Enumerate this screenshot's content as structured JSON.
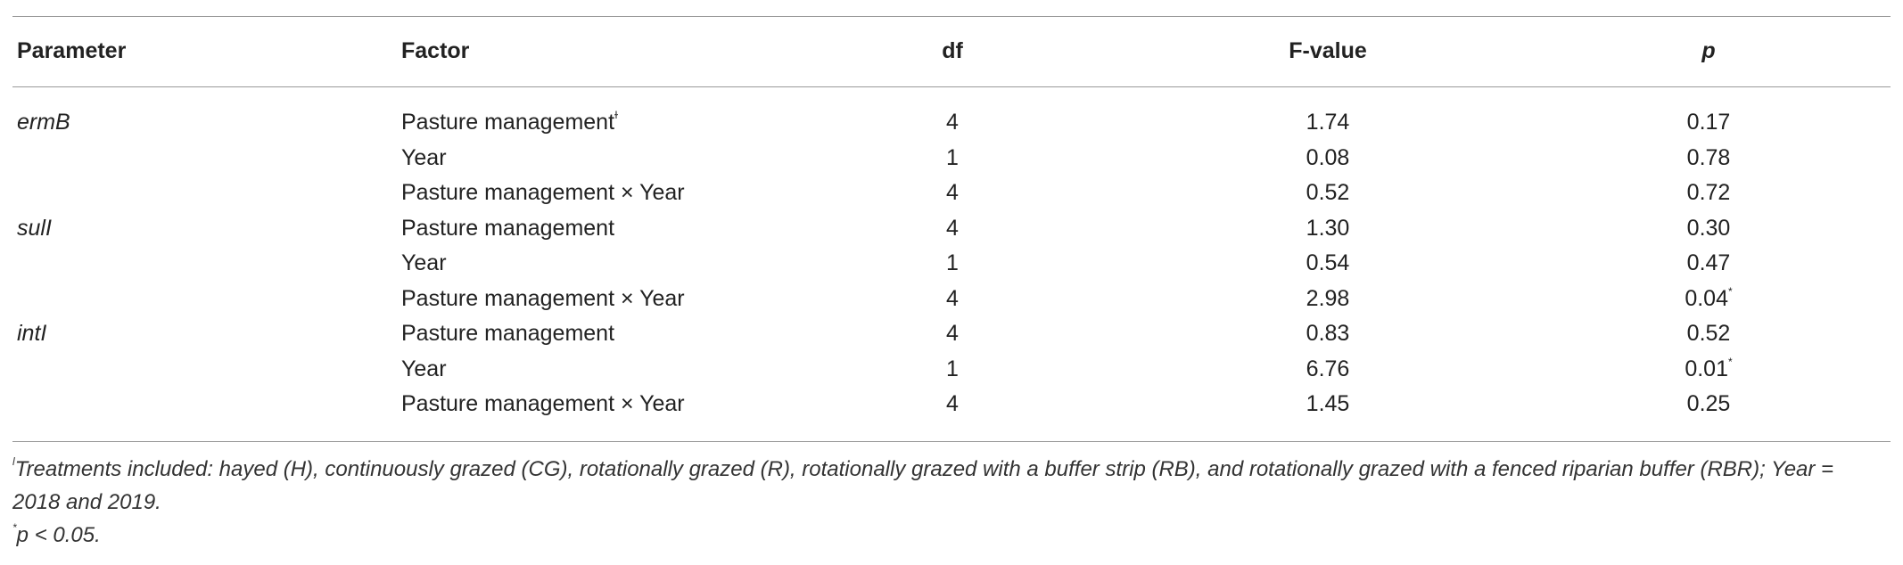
{
  "table": {
    "header": [
      "Parameter",
      "Factor",
      "df",
      "F-value",
      "p"
    ],
    "rows": [
      {
        "parameter": "ermB",
        "factor": "Pasture management",
        "factor_note": "ɫ",
        "df": "4",
        "f_value": "1.74",
        "p": "0.17"
      },
      {
        "factor": "Year",
        "df": "1",
        "f_value": "0.08",
        "p": "0.78"
      },
      {
        "factor": "Pasture management × Year",
        "df": "4",
        "f_value": "0.52",
        "p": "0.72"
      },
      {
        "parameter": "sulI",
        "factor": "Pasture management",
        "df": "4",
        "f_value": "1.30",
        "p": "0.30"
      },
      {
        "factor": "Year",
        "df": "1",
        "f_value": "0.54",
        "p": "0.47"
      },
      {
        "factor": "Pasture management × Year",
        "df": "4",
        "f_value": "2.98",
        "p": "0.04",
        "p_note": "*"
      },
      {
        "parameter": "intI",
        "factor": "Pasture management",
        "df": "4",
        "f_value": "0.83",
        "p": "0.52"
      },
      {
        "factor": "Year",
        "df": "1",
        "f_value": "6.76",
        "p": "0.01",
        "p_note": "*"
      },
      {
        "factor": "Pasture management × Year",
        "df": "4",
        "f_value": "1.45",
        "p": "0.25"
      }
    ]
  },
  "footnotes": [
    {
      "marker": "ɫ",
      "text": "Treatments included: hayed (H), continuously grazed (CG), rotationally grazed (R), rotationally grazed with a buffer strip (RB), and rotationally grazed with a fenced riparian buffer (RBR); Year = 2018 and 2019."
    },
    {
      "marker": "*",
      "text": "p < 0.05."
    }
  ]
}
